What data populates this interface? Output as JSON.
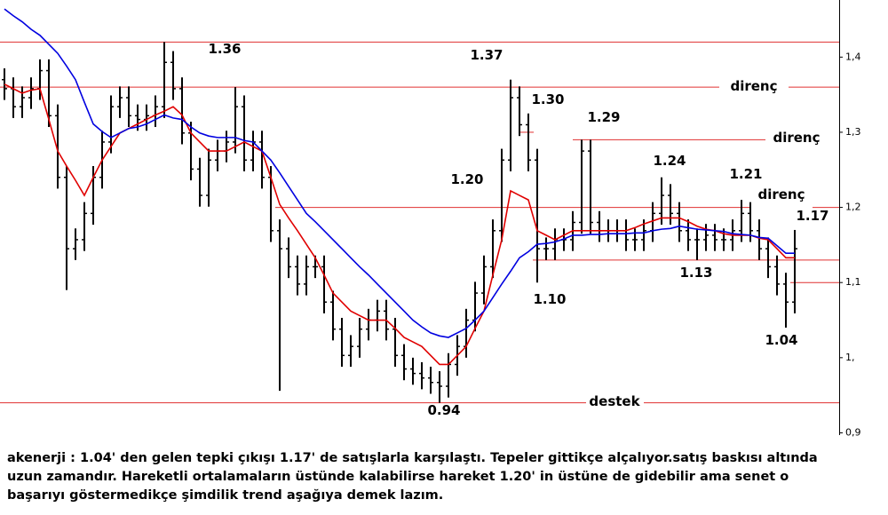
{
  "chart_data": {
    "type": "ohlc",
    "ylim": [
      0.897,
      1.476
    ],
    "yticks": [
      {
        "value": 1.4,
        "label": "1,4"
      },
      {
        "value": 1.3,
        "label": "1,3"
      },
      {
        "value": 1.2,
        "label": "1,2"
      },
      {
        "value": 1.1,
        "label": "1,1"
      },
      {
        "value": 1.0,
        "label": "1,"
      },
      {
        "value": 0.9,
        "label": "0,9"
      }
    ],
    "bar_color": "#000000",
    "open": [
      1.37,
      1.358,
      1.334,
      1.346,
      1.358,
      1.382,
      1.322,
      1.24,
      1.145,
      1.157,
      1.192,
      1.24,
      1.287,
      1.334,
      1.346,
      1.322,
      1.317,
      1.322,
      1.334,
      1.393,
      1.358,
      1.299,
      1.251,
      1.216,
      1.263,
      1.275,
      1.287,
      1.334,
      1.263,
      1.287,
      1.24,
      1.169,
      1.145,
      1.121,
      1.098,
      1.121,
      1.121,
      1.074,
      1.038,
      1.003,
      1.015,
      1.038,
      1.05,
      1.062,
      1.038,
      1.003,
      0.985,
      0.979,
      0.973,
      0.967,
      0.962,
      0.991,
      1.015,
      1.05,
      1.086,
      1.121,
      1.169,
      1.263,
      1.346,
      1.31,
      1.263,
      1.145,
      1.145,
      1.157,
      1.157,
      1.18,
      1.275,
      1.18,
      1.169,
      1.169,
      1.169,
      1.157,
      1.157,
      1.169,
      1.192,
      1.216,
      1.192,
      1.169,
      1.157,
      1.157,
      1.163,
      1.157,
      1.157,
      1.169,
      1.192,
      1.169,
      1.145,
      1.121,
      1.098,
      1.074
    ],
    "high": [
      1.385,
      1.373,
      1.361,
      1.373,
      1.397,
      1.397,
      1.337,
      1.255,
      1.172,
      1.207,
      1.255,
      1.302,
      1.349,
      1.361,
      1.361,
      1.337,
      1.337,
      1.349,
      1.42,
      1.408,
      1.373,
      1.314,
      1.266,
      1.278,
      1.29,
      1.302,
      1.36,
      1.349,
      1.302,
      1.302,
      1.255,
      1.184,
      1.16,
      1.136,
      1.136,
      1.136,
      1.136,
      1.089,
      1.053,
      1.03,
      1.053,
      1.065,
      1.077,
      1.077,
      1.053,
      1.018,
      1.0,
      0.994,
      0.988,
      0.982,
      1.006,
      1.03,
      1.065,
      1.101,
      1.136,
      1.184,
      1.278,
      1.37,
      1.361,
      1.325,
      1.278,
      1.16,
      1.172,
      1.172,
      1.195,
      1.29,
      1.29,
      1.195,
      1.184,
      1.184,
      1.184,
      1.172,
      1.184,
      1.207,
      1.24,
      1.231,
      1.207,
      1.184,
      1.172,
      1.178,
      1.178,
      1.172,
      1.184,
      1.21,
      1.207,
      1.184,
      1.16,
      1.136,
      1.113,
      1.17
    ],
    "low": [
      1.343,
      1.319,
      1.319,
      1.331,
      1.343,
      1.307,
      1.225,
      1.09,
      1.13,
      1.142,
      1.177,
      1.225,
      1.272,
      1.319,
      1.307,
      1.302,
      1.302,
      1.307,
      1.319,
      1.343,
      1.284,
      1.236,
      1.201,
      1.201,
      1.248,
      1.26,
      1.272,
      1.248,
      1.248,
      1.225,
      1.154,
      0.956,
      1.106,
      1.083,
      1.083,
      1.106,
      1.059,
      1.023,
      0.988,
      0.988,
      1.0,
      1.023,
      1.035,
      1.023,
      0.988,
      0.97,
      0.964,
      0.958,
      0.952,
      0.94,
      0.947,
      0.976,
      1.0,
      1.035,
      1.071,
      1.106,
      1.154,
      1.248,
      1.295,
      1.248,
      1.1,
      1.13,
      1.13,
      1.142,
      1.142,
      1.165,
      1.165,
      1.154,
      1.154,
      1.154,
      1.142,
      1.142,
      1.142,
      1.154,
      1.177,
      1.177,
      1.154,
      1.142,
      1.13,
      1.142,
      1.142,
      1.142,
      1.142,
      1.154,
      1.154,
      1.13,
      1.106,
      1.083,
      1.04,
      1.059
    ],
    "close": [
      1.358,
      1.334,
      1.346,
      1.358,
      1.382,
      1.322,
      1.24,
      1.145,
      1.157,
      1.192,
      1.24,
      1.287,
      1.334,
      1.346,
      1.322,
      1.317,
      1.322,
      1.334,
      1.393,
      1.358,
      1.299,
      1.251,
      1.216,
      1.263,
      1.275,
      1.287,
      1.334,
      1.263,
      1.287,
      1.24,
      1.169,
      1.145,
      1.121,
      1.098,
      1.121,
      1.121,
      1.074,
      1.038,
      1.003,
      1.015,
      1.038,
      1.05,
      1.062,
      1.038,
      1.003,
      0.985,
      0.979,
      0.973,
      0.967,
      0.962,
      0.991,
      1.015,
      1.05,
      1.086,
      1.121,
      1.169,
      1.263,
      1.346,
      1.31,
      1.263,
      1.145,
      1.145,
      1.157,
      1.157,
      1.18,
      1.275,
      1.18,
      1.169,
      1.169,
      1.169,
      1.157,
      1.157,
      1.169,
      1.192,
      1.216,
      1.192,
      1.169,
      1.157,
      1.157,
      1.163,
      1.157,
      1.157,
      1.169,
      1.192,
      1.169,
      1.145,
      1.121,
      1.098,
      1.074,
      1.145
    ],
    "moving_averages": [
      {
        "color": "#e00000",
        "values": [
          1.364,
          1.358,
          1.352,
          1.356,
          1.358,
          1.317,
          1.275,
          1.255,
          1.236,
          1.216,
          1.24,
          1.263,
          1.281,
          1.299,
          1.305,
          1.311,
          1.317,
          1.323,
          1.328,
          1.334,
          1.323,
          1.299,
          1.287,
          1.275,
          1.275,
          1.275,
          1.281,
          1.287,
          1.281,
          1.275,
          1.24,
          1.204,
          1.186,
          1.169,
          1.151,
          1.133,
          1.11,
          1.086,
          1.074,
          1.062,
          1.056,
          1.05,
          1.05,
          1.05,
          1.039,
          1.027,
          1.021,
          1.015,
          1.003,
          0.991,
          0.991,
          1.003,
          1.015,
          1.039,
          1.062,
          1.11,
          1.157,
          1.222,
          1.216,
          1.21,
          1.169,
          1.163,
          1.157,
          1.163,
          1.169,
          1.169,
          1.169,
          1.169,
          1.169,
          1.169,
          1.169,
          1.173,
          1.178,
          1.182,
          1.186,
          1.186,
          1.186,
          1.181,
          1.175,
          1.171,
          1.169,
          1.165,
          1.163,
          1.163,
          1.163,
          1.159,
          1.157,
          1.145,
          1.133,
          1.133
        ]
      },
      {
        "color": "#0000e0",
        "values": [
          1.464,
          1.455,
          1.447,
          1.437,
          1.429,
          1.417,
          1.405,
          1.388,
          1.37,
          1.34,
          1.311,
          1.301,
          1.293,
          1.299,
          1.305,
          1.307,
          1.311,
          1.317,
          1.323,
          1.319,
          1.317,
          1.307,
          1.299,
          1.295,
          1.293,
          1.293,
          1.293,
          1.289,
          1.287,
          1.275,
          1.263,
          1.246,
          1.228,
          1.21,
          1.192,
          1.181,
          1.169,
          1.157,
          1.145,
          1.133,
          1.121,
          1.11,
          1.098,
          1.086,
          1.074,
          1.062,
          1.05,
          1.041,
          1.033,
          1.029,
          1.027,
          1.033,
          1.039,
          1.05,
          1.062,
          1.08,
          1.098,
          1.115,
          1.133,
          1.141,
          1.151,
          1.152,
          1.154,
          1.158,
          1.163,
          1.163,
          1.164,
          1.164,
          1.165,
          1.165,
          1.165,
          1.166,
          1.166,
          1.169,
          1.171,
          1.172,
          1.175,
          1.173,
          1.171,
          1.17,
          1.169,
          1.168,
          1.165,
          1.164,
          1.163,
          1.16,
          1.159,
          1.149,
          1.139,
          1.139
        ]
      }
    ],
    "level_color": "#e03030",
    "levels": [
      1.42,
      1.36,
      1.3,
      1.29,
      1.2,
      1.13,
      1.1,
      0.94
    ],
    "annotations": [
      "1.36",
      "1.37",
      "1.30",
      "1.29",
      "1.24",
      "1.21",
      "1.17",
      "1.20",
      "1.10",
      "1.13",
      "1.04",
      "0.94",
      "direnç",
      "direnç",
      "direnç",
      "destek"
    ]
  },
  "caption": [
    "akenerji : 1.04' den gelen tepki çıkışı 1.17' de satışlarla karşılaştı. Tepeler gittikçe alçalıyor.satış baskısı altında",
    "uzun zamandır. Hareketli ortalamaların üstünde kalabilirse hareket 1.20' in üstüne de gidebilir ama senet o",
    "başarıyı göstermedikçe şimdilik trend aşağıya demek lazım."
  ]
}
